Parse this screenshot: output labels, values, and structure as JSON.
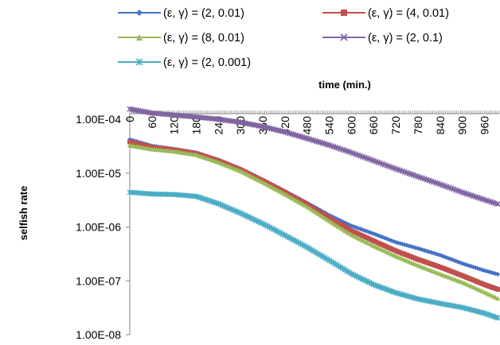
{
  "chart_data": {
    "type": "line",
    "title": "",
    "xlabel": "time (min.)",
    "ylabel": "selfish rate",
    "yscale": "log",
    "ylim": [
      1e-08,
      0.0001
    ],
    "xlim": [
      0,
      1000
    ],
    "x_ticks": [
      "0",
      "60",
      "120",
      "180",
      "240",
      "300",
      "360",
      "420",
      "480",
      "540",
      "600",
      "660",
      "720",
      "780",
      "840",
      "900",
      "960"
    ],
    "y_ticks": [
      "1.00E-08",
      "1.00E-07",
      "1.00E-06",
      "1.00E-05",
      "1.00E-04"
    ],
    "legend_position": "top",
    "series": [
      {
        "name": "(ε, γ) = (2, 0.01)",
        "color": "#4472C4",
        "marker": "diamond",
        "x": [
          0,
          60,
          120,
          180,
          240,
          300,
          360,
          420,
          480,
          540,
          600,
          660,
          720,
          780,
          840,
          900,
          960,
          1000
        ],
        "y": [
          4.2e-05,
          3.2e-05,
          2.8e-05,
          2.4e-05,
          1.75e-05,
          1.2e-05,
          7.5e-06,
          4.6e-06,
          2.8e-06,
          1.65e-06,
          1.05e-06,
          7.5e-07,
          5.2e-07,
          4e-07,
          3e-07,
          2.1e-07,
          1.55e-07,
          1.3e-07
        ]
      },
      {
        "name": "(ε, γ) = (4, 0.01)",
        "color": "#C0504D",
        "marker": "square",
        "x": [
          0,
          60,
          120,
          180,
          240,
          300,
          360,
          420,
          480,
          540,
          600,
          660,
          720,
          780,
          840,
          900,
          960,
          1000
        ],
        "y": [
          3.8e-05,
          3e-05,
          2.7e-05,
          2.3e-05,
          1.7e-05,
          1.15e-05,
          7.2e-06,
          4.4e-06,
          2.6e-06,
          1.45e-06,
          8.5e-07,
          5.5e-07,
          3.6e-07,
          2.5e-07,
          1.8e-07,
          1.25e-07,
          8.5e-08,
          6.8e-08
        ]
      },
      {
        "name": "(ε, γ) = (8, 0.01)",
        "color": "#9BBB59",
        "marker": "triangle",
        "x": [
          0,
          60,
          120,
          180,
          240,
          300,
          360,
          420,
          480,
          540,
          600,
          660,
          720,
          780,
          840,
          900,
          960,
          1000
        ],
        "y": [
          3.3e-05,
          2.8e-05,
          2.55e-05,
          2.2e-05,
          1.6e-05,
          1.1e-05,
          6.8e-06,
          4.1e-06,
          2.4e-06,
          1.3e-06,
          7.2e-07,
          4.5e-07,
          2.9e-07,
          1.95e-07,
          1.35e-07,
          9.5e-08,
          6.2e-08,
          4.6e-08
        ]
      },
      {
        "name": "(ε, γ) = (2, 0.1)",
        "color": "#8064A2",
        "marker": "x",
        "x": [
          0,
          60,
          120,
          180,
          240,
          300,
          360,
          420,
          480,
          540,
          600,
          660,
          720,
          780,
          840,
          900,
          960,
          1000
        ],
        "y": [
          0.000155,
          0.00013,
          0.00012,
          0.00011,
          0.0001,
          8.8e-05,
          7.3e-05,
          5.8e-05,
          4.4e-05,
          3.3e-05,
          2.4e-05,
          1.7e-05,
          1.2e-05,
          8.6e-06,
          6.2e-06,
          4.4e-06,
          3.2e-06,
          2.6e-06
        ]
      },
      {
        "name": "(ε, γ) = (2, 0.001)",
        "color": "#4BACC6",
        "marker": "star",
        "x": [
          0,
          60,
          120,
          180,
          240,
          300,
          360,
          420,
          480,
          540,
          600,
          660,
          720,
          780,
          840,
          900,
          960,
          1000
        ],
        "y": [
          4.4e-06,
          4.1e-06,
          4e-06,
          3.7e-06,
          2.7e-06,
          1.8e-06,
          1.15e-06,
          7e-07,
          4.2e-07,
          2.4e-07,
          1.35e-07,
          8.5e-08,
          6e-08,
          4.6e-08,
          3.8e-08,
          3.2e-08,
          2.5e-08,
          2e-08
        ]
      }
    ]
  }
}
